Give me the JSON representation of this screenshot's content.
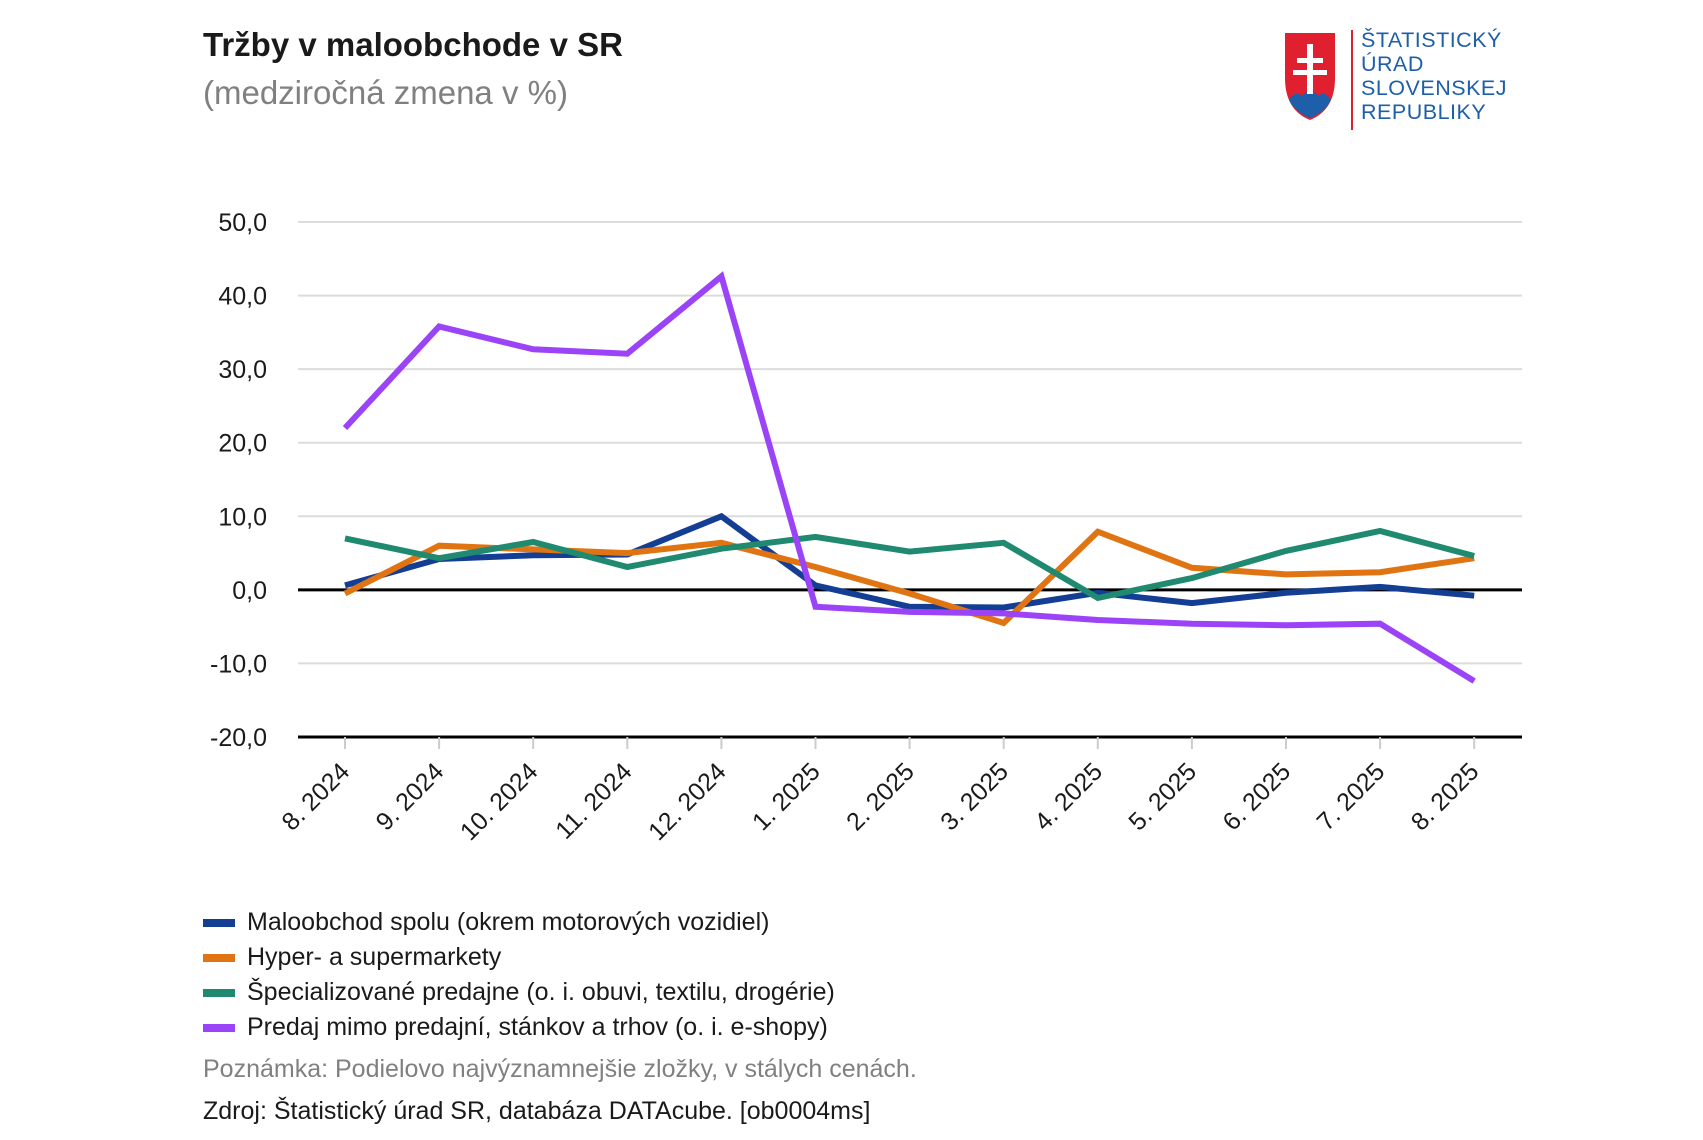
{
  "header": {
    "title": "Tržby v maloobchode v SR",
    "subtitle": "(medziročná zmena v %)"
  },
  "logo": {
    "lines": [
      "ŠTATISTICKÝ",
      "ÚRAD",
      "SLOVENSKEJ",
      "REPUBLIKY"
    ],
    "icon": "slovak-coat-of-arms-icon",
    "colors": {
      "shield_red": "#e0202f",
      "shield_blue": "#1d5fa8",
      "divider_red": "#e0202f",
      "text_blue": "#1d5fa8"
    }
  },
  "chart_data": {
    "type": "line",
    "title": "Tržby v maloobchode v SR",
    "subtitle": "(medziročná zmena v %)",
    "xlabel": "",
    "ylabel": "",
    "ylim": [
      -20,
      50
    ],
    "yticks": [
      50,
      40,
      30,
      20,
      10,
      0,
      -10,
      -20
    ],
    "ytick_labels": [
      "50,0",
      "40,0",
      "30,0",
      "20,0",
      "10,0",
      "0,0",
      "-10,0",
      "-20,0"
    ],
    "categories": [
      "8. 2024",
      "9. 2024",
      "10. 2024",
      "11. 2024",
      "12. 2024",
      "1. 2025",
      "2. 2025",
      "3. 2025",
      "4. 2025",
      "5. 2025",
      "6. 2025",
      "7. 2025",
      "8. 2025"
    ],
    "grid": true,
    "legend_position": "bottom-left",
    "series": [
      {
        "name": "Maloobchod spolu (okrem motorových vozidiel)",
        "color": "#133e94",
        "values": [
          0.6,
          4.2,
          4.7,
          4.8,
          10.0,
          0.6,
          -2.3,
          -2.4,
          -0.4,
          -1.8,
          -0.4,
          0.4,
          -0.8
        ]
      },
      {
        "name": "Hyper- a supermarkety",
        "color": "#e07412",
        "values": [
          -0.5,
          6.0,
          5.5,
          5.0,
          6.4,
          3.1,
          -0.5,
          -4.5,
          7.9,
          3.0,
          2.1,
          2.4,
          4.3
        ]
      },
      {
        "name": "Špecializované predajne (o. i. obuvi, textilu, drogérie)",
        "color": "#1f8a70",
        "values": [
          7.0,
          4.3,
          6.5,
          3.1,
          5.6,
          7.2,
          5.2,
          6.4,
          -1.1,
          1.6,
          5.3,
          8.0,
          4.6
        ]
      },
      {
        "name": "Predaj mimo predajní, stánkov a trhov (o. i. e-shopy)",
        "color": "#9b44f7",
        "values": [
          22.0,
          35.8,
          32.7,
          32.1,
          42.6,
          -2.3,
          -3.0,
          -3.2,
          -4.1,
          -4.6,
          -4.8,
          -4.6,
          -12.4
        ]
      }
    ]
  },
  "footer": {
    "note": "Poznámka: Podielovo najvýznamnejšie zložky, v stálych cenách.",
    "source": "Zdroj: Štatistický úrad SR, databáza DATAcube. [ob0004ms]"
  }
}
